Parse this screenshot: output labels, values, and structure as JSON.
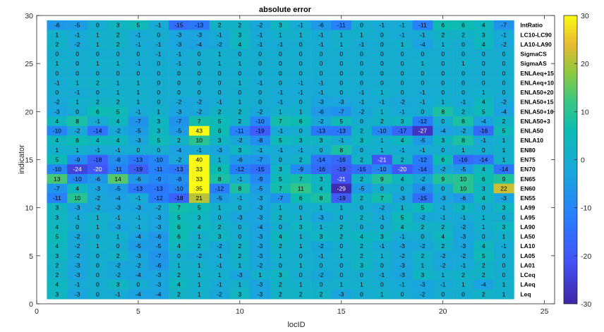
{
  "chart_data": {
    "type": "heatmap",
    "title": "absolute error",
    "xlabel": "locID",
    "ylabel": "indicator",
    "xlim": [
      0,
      25.5
    ],
    "ylim": [
      0,
      30
    ],
    "x_ticks": [
      "0",
      "5",
      "10",
      "15",
      "20",
      "25"
    ],
    "y_ticks": [
      "0",
      "5",
      "10",
      "15",
      "20",
      "25",
      "30"
    ],
    "colorbar_ticks": [
      "30",
      "20",
      "10",
      "0",
      "-10",
      "-20",
      "-30"
    ],
    "clim": [
      -30,
      30
    ],
    "colormap": "parula",
    "grid": false,
    "columns": [
      1,
      2,
      3,
      4,
      5,
      6,
      7,
      8,
      9,
      10,
      11,
      12,
      13,
      14,
      15,
      16,
      17,
      18,
      19,
      20,
      21,
      22,
      23
    ],
    "rows": [
      {
        "label": "IntRatio",
        "values": [
          -6,
          -5,
          0,
          3,
          5,
          -1,
          -15,
          -13,
          2,
          2,
          -2,
          3,
          -1,
          -6,
          -11,
          0,
          -1,
          -1,
          -11,
          6,
          6,
          4,
          -7
        ]
      },
      {
        "label": "LC10-LC90",
        "values": [
          1,
          -1,
          1,
          2,
          -1,
          0,
          -3,
          -3,
          -1,
          3,
          -1,
          1,
          1,
          -1,
          1,
          1,
          0,
          -1,
          -1,
          2,
          2,
          3,
          -1
        ]
      },
      {
        "label": "LA10-LA90",
        "values": [
          2,
          -2,
          1,
          2,
          -1,
          -1,
          -3,
          -4,
          -2,
          4,
          -1,
          -1,
          0,
          -1,
          1,
          -1,
          0,
          1,
          -4,
          1,
          0,
          4,
          -2
        ]
      },
      {
        "label": "SigmaCS",
        "values": [
          0,
          0,
          0,
          0,
          0,
          -1,
          -1,
          0,
          1,
          0,
          0,
          0,
          0,
          0,
          0,
          0,
          0,
          0,
          0,
          0,
          0,
          0,
          0
        ]
      },
      {
        "label": "SigmaAS",
        "values": [
          1,
          0,
          1,
          1,
          -1,
          0,
          -1,
          0,
          1,
          1,
          0,
          0,
          0,
          0,
          0,
          0,
          0,
          0,
          1,
          0,
          1,
          0,
          0
        ]
      },
      {
        "label": "ENLAeq+15",
        "values": [
          0,
          0,
          0,
          0,
          0,
          0,
          0,
          0,
          0,
          0,
          0,
          0,
          0,
          0,
          0,
          0,
          0,
          0,
          0,
          0,
          0,
          0,
          0
        ]
      },
      {
        "label": "ENLAeq+10",
        "values": [
          -1,
          1,
          2,
          1,
          1,
          0,
          0,
          0,
          0,
          1,
          -1,
          0,
          -1,
          -1,
          0,
          0,
          0,
          0,
          0,
          0,
          0,
          0,
          0
        ]
      },
      {
        "label": "ENLA50+20",
        "values": [
          0,
          -1,
          0,
          1,
          1,
          0,
          0,
          0,
          0,
          0,
          0,
          -1,
          -1,
          -1,
          0,
          -1,
          1,
          0,
          -1,
          0,
          0,
          1,
          0
        ]
      },
      {
        "label": "ENLA50+15",
        "values": [
          -2,
          1,
          2,
          2,
          1,
          0,
          -2,
          -2,
          -1,
          1,
          0,
          -1,
          0,
          -3,
          -3,
          -1,
          -1,
          -2,
          -1,
          1,
          -1,
          4,
          -2
        ]
      },
      {
        "label": "ENLA50+10",
        "values": [
          -3,
          0,
          6,
          5,
          -1,
          1,
          -3,
          -2,
          2,
          2,
          -2,
          1,
          1,
          -6,
          -7,
          -2,
          1,
          -1,
          0,
          8,
          2,
          5,
          -4
        ]
      },
      {
        "label": "ENLA50+3",
        "values": [
          4,
          8,
          -1,
          4,
          -7,
          3,
          -7,
          7,
          5,
          2,
          -10,
          7,
          6,
          -2,
          5,
          0,
          2,
          3,
          -12,
          0,
          8,
          -4,
          2
        ]
      },
      {
        "label": "ENLA50",
        "values": [
          -10,
          -2,
          -14,
          -2,
          -5,
          3,
          -5,
          43,
          6,
          -11,
          -19,
          -1,
          0,
          -13,
          -13,
          2,
          -10,
          -17,
          -27,
          -4,
          -2,
          -16,
          5
        ]
      },
      {
        "label": "ENLA10",
        "values": [
          4,
          6,
          4,
          4,
          -3,
          5,
          2,
          10,
          3,
          -2,
          -8,
          5,
          3,
          3,
          -1,
          3,
          1,
          4,
          -5,
          3,
          8,
          -1,
          1
        ]
      },
      {
        "label": "EN80",
        "values": [
          1,
          1,
          -1,
          -1,
          0,
          0,
          -4,
          -1,
          -3,
          3,
          -1,
          -1,
          -1,
          0,
          8,
          0,
          1,
          -1,
          -1,
          0,
          1,
          0,
          1
        ]
      },
      {
        "label": "EN75",
        "values": [
          5,
          -9,
          -18,
          -8,
          -13,
          -10,
          -2,
          40,
          1,
          -6,
          -7,
          0,
          2,
          -14,
          -16,
          2,
          -21,
          2,
          -12,
          6,
          -16,
          -14,
          1
        ]
      },
      {
        "label": "EN70",
        "values": [
          -10,
          -24,
          -20,
          -11,
          -19,
          -11,
          -13,
          33,
          6,
          -12,
          -15,
          3,
          -9,
          -16,
          -19,
          -15,
          -10,
          -20,
          -14,
          -2,
          -5,
          4,
          -14
        ]
      },
      {
        "label": "EN65",
        "values": [
          13,
          -10,
          -6,
          14,
          -6,
          -9,
          -8,
          33,
          8,
          -1,
          -9,
          5,
          7,
          3,
          -21,
          2,
          9,
          4,
          -2,
          9,
          10,
          6,
          9
        ]
      },
      {
        "label": "EN60",
        "values": [
          -7,
          4,
          -3,
          -5,
          -13,
          -13,
          -10,
          35,
          -12,
          8,
          -5,
          7,
          11,
          4,
          -29,
          -5,
          0,
          0,
          -8,
          0,
          10,
          3,
          22
        ]
      },
      {
        "label": "EN55",
        "values": [
          -11,
          10,
          -2,
          -4,
          -1,
          -12,
          -18,
          21,
          -5,
          -1,
          -3,
          -7,
          6,
          8,
          -19,
          2,
          7,
          -3,
          -15,
          -3,
          -6,
          4,
          -3
        ]
      },
      {
        "label": "LA99",
        "values": [
          3,
          -3,
          -2,
          -3,
          -3,
          -2,
          7,
          5,
          1,
          0,
          -3,
          1,
          0,
          1,
          1,
          0,
          -2,
          1,
          5,
          -1,
          3,
          0,
          3
        ]
      },
      {
        "label": "LA95",
        "values": [
          3,
          -1,
          1,
          -1,
          -1,
          -3,
          5,
          3,
          0,
          -3,
          -3,
          2,
          1,
          -3,
          0,
          2,
          -1,
          5,
          -2,
          -1,
          -1,
          1,
          0
        ]
      },
      {
        "label": "LA90",
        "values": [
          4,
          0,
          1,
          -3,
          -1,
          -3,
          6,
          4,
          2,
          0,
          -4,
          0,
          3,
          1,
          2,
          0,
          0,
          4,
          2,
          2,
          -2,
          1,
          3
        ]
      },
      {
        "label": "LA50",
        "values": [
          5,
          -2,
          0,
          1,
          -4,
          -6,
          6,
          1,
          3,
          0,
          -3,
          4,
          1,
          3,
          2,
          4,
          3,
          -1,
          0,
          4,
          -3,
          0,
          1
        ]
      },
      {
        "label": "LA10",
        "values": [
          4,
          -2,
          1,
          0,
          -5,
          -5,
          4,
          2,
          -2,
          2,
          -3,
          2,
          1,
          -2,
          0,
          2,
          -1,
          -3,
          -2,
          2,
          -3,
          4,
          -1
        ]
      },
      {
        "label": "LA05",
        "values": [
          3,
          -2,
          0,
          2,
          -3,
          -7,
          0,
          -2,
          -1,
          2,
          -3,
          1,
          0,
          -1,
          1,
          2,
          1,
          -2,
          2,
          -2,
          -2,
          5,
          0
        ]
      },
      {
        "label": "LA01",
        "values": [
          2,
          -3,
          0,
          -2,
          -2,
          -6,
          1,
          1,
          -1,
          1,
          -2,
          0,
          1,
          0,
          0,
          3,
          0,
          -3,
          1,
          -2,
          -1,
          2,
          0
        ]
      },
      {
        "label": "LCeq",
        "values": [
          2,
          -3,
          0,
          -2,
          -4,
          -3,
          2,
          1,
          1,
          -3,
          1,
          3,
          0,
          -2,
          0,
          0,
          -1,
          -3,
          3,
          1,
          2,
          2,
          0
        ]
      },
      {
        "label": "LAeq",
        "values": [
          4,
          -1,
          0,
          3,
          0,
          -3,
          4,
          1,
          -1,
          1,
          -3,
          2,
          1,
          0,
          1,
          1,
          0,
          -1,
          -3,
          -1,
          1,
          -4,
          1
        ]
      },
      {
        "label": "Leq",
        "values": [
          3,
          -3,
          0,
          -1,
          -4,
          -4,
          2,
          1,
          -2,
          3,
          -3,
          2,
          2,
          2,
          -3,
          0,
          1,
          0,
          -2,
          0,
          0,
          2,
          1
        ]
      }
    ]
  }
}
